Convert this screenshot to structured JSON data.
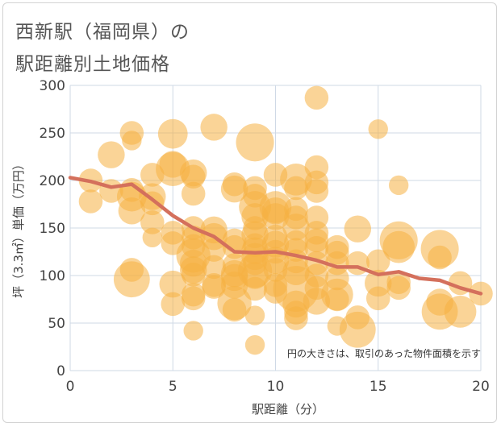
{
  "title_line1": "西新駅（福岡県）の",
  "title_line2": "駅距離別土地価格",
  "chart_data": {
    "type": "scatter",
    "xlabel": "駅距離（分）",
    "ylabel": "坪（3.3㎡）単価（万円）",
    "xlim": [
      0,
      20
    ],
    "ylim": [
      0,
      300
    ],
    "xticks": [
      0,
      5,
      10,
      15,
      20
    ],
    "yticks": [
      0,
      50,
      100,
      150,
      200,
      250,
      300
    ],
    "grid": true,
    "note": "円の大きさは、取引のあった物件面積を示す",
    "bubble_color": "#f5b041",
    "line_color": "#d4705c",
    "trend_line": {
      "x": [
        0,
        1,
        2,
        3,
        4,
        5,
        6,
        7,
        8,
        9,
        10,
        11,
        12,
        13,
        14,
        15,
        16,
        17,
        18,
        19,
        20
      ],
      "y": [
        203,
        199,
        193,
        196,
        180,
        163,
        150,
        141,
        125,
        124,
        125,
        121,
        116,
        109,
        109,
        101,
        104,
        97,
        95,
        87,
        81
      ]
    },
    "points": [
      {
        "x": 1,
        "y": 200,
        "s": 2
      },
      {
        "x": 1,
        "y": 178,
        "s": 2
      },
      {
        "x": 2,
        "y": 227,
        "s": 3
      },
      {
        "x": 2,
        "y": 189,
        "s": 2
      },
      {
        "x": 3,
        "y": 250,
        "s": 2
      },
      {
        "x": 3,
        "y": 242,
        "s": 1
      },
      {
        "x": 3,
        "y": 190,
        "s": 2
      },
      {
        "x": 3,
        "y": 183,
        "s": 4
      },
      {
        "x": 3,
        "y": 168,
        "s": 3
      },
      {
        "x": 3,
        "y": 106,
        "s": 2
      },
      {
        "x": 3,
        "y": 96,
        "s": 7
      },
      {
        "x": 4,
        "y": 206,
        "s": 2
      },
      {
        "x": 4,
        "y": 183,
        "s": 3
      },
      {
        "x": 4,
        "y": 176,
        "s": 2
      },
      {
        "x": 4,
        "y": 156,
        "s": 2
      },
      {
        "x": 4,
        "y": 140,
        "s": 1
      },
      {
        "x": 5,
        "y": 249,
        "s": 4
      },
      {
        "x": 5,
        "y": 217,
        "s": 3
      },
      {
        "x": 5,
        "y": 212,
        "s": 6
      },
      {
        "x": 5,
        "y": 145,
        "s": 2
      },
      {
        "x": 5,
        "y": 134,
        "s": 2
      },
      {
        "x": 5,
        "y": 91,
        "s": 3
      },
      {
        "x": 5,
        "y": 70,
        "s": 2
      },
      {
        "x": 6,
        "y": 208,
        "s": 3
      },
      {
        "x": 6,
        "y": 204,
        "s": 2
      },
      {
        "x": 6,
        "y": 186,
        "s": 2
      },
      {
        "x": 6,
        "y": 150,
        "s": 2
      },
      {
        "x": 6,
        "y": 140,
        "s": 2
      },
      {
        "x": 6,
        "y": 131,
        "s": 2
      },
      {
        "x": 6,
        "y": 121,
        "s": 6
      },
      {
        "x": 6,
        "y": 113,
        "s": 3
      },
      {
        "x": 6,
        "y": 106,
        "s": 3
      },
      {
        "x": 6,
        "y": 101,
        "s": 2
      },
      {
        "x": 6,
        "y": 80,
        "s": 2
      },
      {
        "x": 6,
        "y": 76,
        "s": 2
      },
      {
        "x": 6,
        "y": 42,
        "s": 1
      },
      {
        "x": 7,
        "y": 256,
        "s": 3
      },
      {
        "x": 7,
        "y": 148,
        "s": 3
      },
      {
        "x": 7,
        "y": 141,
        "s": 3
      },
      {
        "x": 7,
        "y": 127,
        "s": 2
      },
      {
        "x": 7,
        "y": 109,
        "s": 2
      },
      {
        "x": 7,
        "y": 90,
        "s": 2
      },
      {
        "x": 7,
        "y": 88,
        "s": 2
      },
      {
        "x": 8,
        "y": 196,
        "s": 2
      },
      {
        "x": 8,
        "y": 191,
        "s": 3
      },
      {
        "x": 8,
        "y": 137,
        "s": 2
      },
      {
        "x": 8,
        "y": 130,
        "s": 2
      },
      {
        "x": 8,
        "y": 111,
        "s": 2
      },
      {
        "x": 8,
        "y": 102,
        "s": 3
      },
      {
        "x": 8,
        "y": 98,
        "s": 3
      },
      {
        "x": 8,
        "y": 90,
        "s": 3
      },
      {
        "x": 8,
        "y": 71,
        "s": 6
      },
      {
        "x": 8,
        "y": 64,
        "s": 2
      },
      {
        "x": 9,
        "y": 240,
        "s": 8
      },
      {
        "x": 9,
        "y": 192,
        "s": 2
      },
      {
        "x": 9,
        "y": 184,
        "s": 2
      },
      {
        "x": 9,
        "y": 172,
        "s": 5
      },
      {
        "x": 9,
        "y": 162,
        "s": 3
      },
      {
        "x": 9,
        "y": 150,
        "s": 2
      },
      {
        "x": 9,
        "y": 143,
        "s": 3
      },
      {
        "x": 9,
        "y": 132,
        "s": 2
      },
      {
        "x": 9,
        "y": 126,
        "s": 3
      },
      {
        "x": 9,
        "y": 120,
        "s": 3
      },
      {
        "x": 9,
        "y": 113,
        "s": 2
      },
      {
        "x": 9,
        "y": 105,
        "s": 6
      },
      {
        "x": 9,
        "y": 100,
        "s": 3
      },
      {
        "x": 9,
        "y": 86,
        "s": 2
      },
      {
        "x": 9,
        "y": 58,
        "s": 1
      },
      {
        "x": 9,
        "y": 27,
        "s": 1
      },
      {
        "x": 10,
        "y": 206,
        "s": 2
      },
      {
        "x": 10,
        "y": 172,
        "s": 5
      },
      {
        "x": 10,
        "y": 168,
        "s": 3
      },
      {
        "x": 10,
        "y": 162,
        "s": 3
      },
      {
        "x": 10,
        "y": 141,
        "s": 2
      },
      {
        "x": 10,
        "y": 133,
        "s": 3
      },
      {
        "x": 10,
        "y": 125,
        "s": 2
      },
      {
        "x": 10,
        "y": 116,
        "s": 3
      },
      {
        "x": 10,
        "y": 106,
        "s": 2
      },
      {
        "x": 10,
        "y": 90,
        "s": 2
      },
      {
        "x": 10,
        "y": 83,
        "s": 2
      },
      {
        "x": 11,
        "y": 201,
        "s": 5
      },
      {
        "x": 11,
        "y": 192,
        "s": 2
      },
      {
        "x": 11,
        "y": 170,
        "s": 2
      },
      {
        "x": 11,
        "y": 161,
        "s": 2
      },
      {
        "x": 11,
        "y": 151,
        "s": 3
      },
      {
        "x": 11,
        "y": 135,
        "s": 2
      },
      {
        "x": 11,
        "y": 127,
        "s": 2
      },
      {
        "x": 11,
        "y": 115,
        "s": 2
      },
      {
        "x": 11,
        "y": 104,
        "s": 3
      },
      {
        "x": 11,
        "y": 86,
        "s": 13
      },
      {
        "x": 11,
        "y": 70,
        "s": 3
      },
      {
        "x": 11,
        "y": 61,
        "s": 2
      },
      {
        "x": 11,
        "y": 55,
        "s": 2
      },
      {
        "x": 12,
        "y": 287,
        "s": 2
      },
      {
        "x": 12,
        "y": 214,
        "s": 2
      },
      {
        "x": 12,
        "y": 198,
        "s": 2
      },
      {
        "x": 12,
        "y": 189,
        "s": 2
      },
      {
        "x": 12,
        "y": 161,
        "s": 2
      },
      {
        "x": 12,
        "y": 145,
        "s": 2
      },
      {
        "x": 12,
        "y": 137,
        "s": 2
      },
      {
        "x": 12,
        "y": 129,
        "s": 2
      },
      {
        "x": 12,
        "y": 113,
        "s": 2
      },
      {
        "x": 12,
        "y": 100,
        "s": 2
      },
      {
        "x": 12,
        "y": 87,
        "s": 2
      },
      {
        "x": 12,
        "y": 73,
        "s": 3
      },
      {
        "x": 13,
        "y": 130,
        "s": 2
      },
      {
        "x": 13,
        "y": 124,
        "s": 2
      },
      {
        "x": 13,
        "y": 113,
        "s": 2
      },
      {
        "x": 13,
        "y": 97,
        "s": 2
      },
      {
        "x": 13,
        "y": 80,
        "s": 5
      },
      {
        "x": 13,
        "y": 75,
        "s": 2
      },
      {
        "x": 13,
        "y": 47,
        "s": 1
      },
      {
        "x": 14,
        "y": 149,
        "s": 3
      },
      {
        "x": 14,
        "y": 113,
        "s": 2
      },
      {
        "x": 14,
        "y": 56,
        "s": 2
      },
      {
        "x": 14,
        "y": 43,
        "s": 7
      },
      {
        "x": 15,
        "y": 254,
        "s": 1
      },
      {
        "x": 15,
        "y": 115,
        "s": 2
      },
      {
        "x": 15,
        "y": 92,
        "s": 3
      },
      {
        "x": 15,
        "y": 76,
        "s": 2
      },
      {
        "x": 16,
        "y": 195,
        "s": 1
      },
      {
        "x": 16,
        "y": 137,
        "s": 8
      },
      {
        "x": 16,
        "y": 130,
        "s": 5
      },
      {
        "x": 16,
        "y": 93,
        "s": 2
      },
      {
        "x": 16,
        "y": 87,
        "s": 2
      },
      {
        "x": 18,
        "y": 128,
        "s": 8
      },
      {
        "x": 18,
        "y": 119,
        "s": 2
      },
      {
        "x": 18,
        "y": 72,
        "s": 3
      },
      {
        "x": 18,
        "y": 62,
        "s": 7
      },
      {
        "x": 19,
        "y": 62,
        "s": 5
      },
      {
        "x": 19,
        "y": 92,
        "s": 2
      },
      {
        "x": 20,
        "y": 81,
        "s": 2
      }
    ]
  }
}
